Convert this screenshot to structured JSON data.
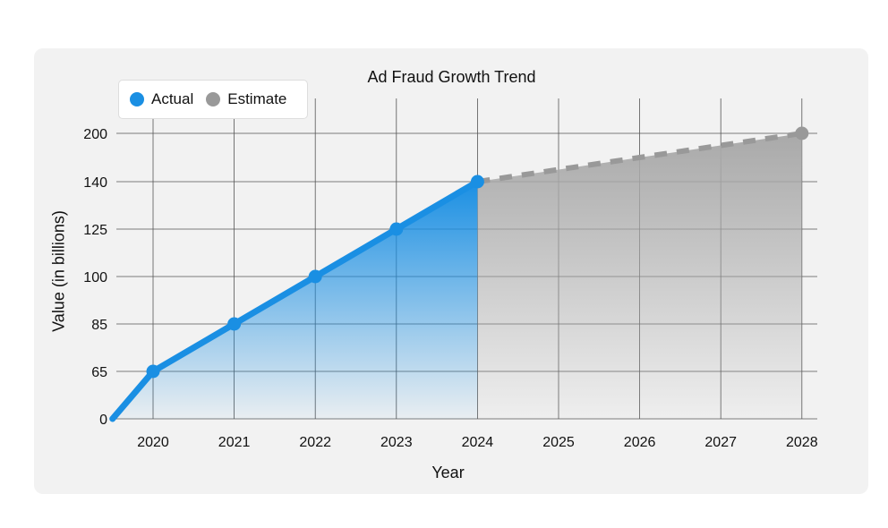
{
  "chart_data": {
    "type": "line",
    "title": "Ad Fraud Growth Trend",
    "xlabel": "Year",
    "ylabel": "Value (in billions)",
    "categories": [
      "2020",
      "2021",
      "2022",
      "2023",
      "2024",
      "2025",
      "2026",
      "2027",
      "2028"
    ],
    "y_ticks": [
      "0",
      "65",
      "85",
      "100",
      "125",
      "140",
      "200"
    ],
    "series": [
      {
        "name": "Actual",
        "color": "#1a8fe3",
        "style": "solid",
        "points": [
          {
            "x": "2019.5",
            "y": 0
          },
          {
            "x": "2020",
            "y": 65
          },
          {
            "x": "2021",
            "y": 85
          },
          {
            "x": "2022",
            "y": 100
          },
          {
            "x": "2023",
            "y": 125
          },
          {
            "x": "2024",
            "y": 140
          }
        ]
      },
      {
        "name": "Estimate",
        "color": "#999999",
        "style": "dashed",
        "points": [
          {
            "x": "2024",
            "y": 140
          },
          {
            "x": "2028",
            "y": 200
          }
        ]
      }
    ],
    "grid": true,
    "legend_position": "top-left",
    "area_fill": true
  }
}
